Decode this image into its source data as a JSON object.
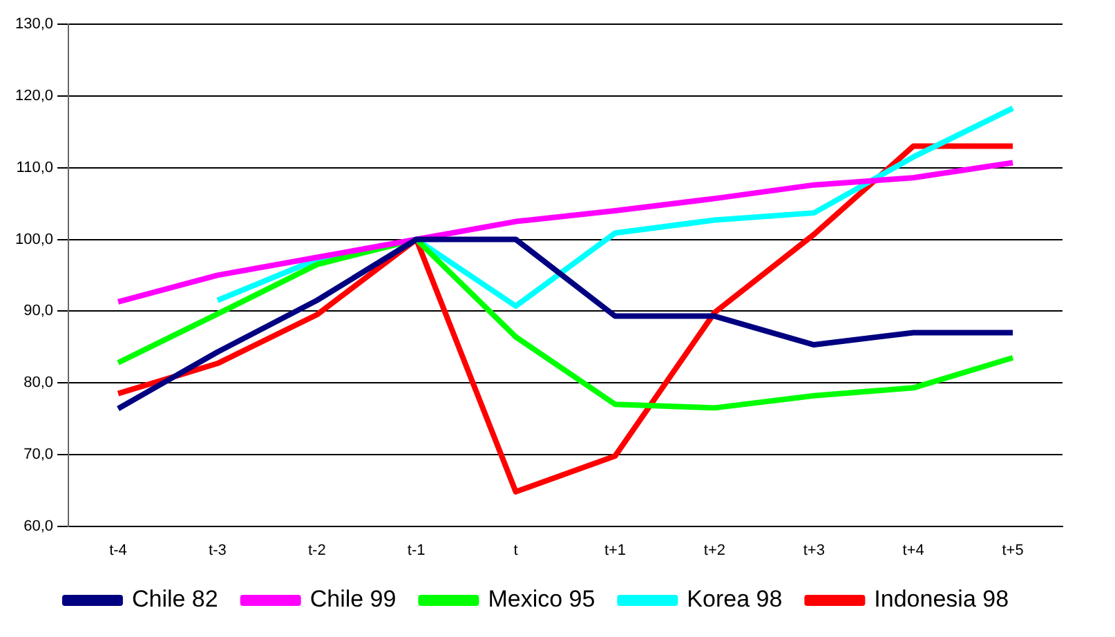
{
  "chart_data": {
    "type": "line",
    "categories": [
      "t-4",
      "t-3",
      "t-2",
      "t-1",
      "t",
      "t+1",
      "t+2",
      "t+3",
      "t+4",
      "t+5"
    ],
    "series": [
      {
        "name": "Chile 82",
        "color": "#000080",
        "values": [
          76.4,
          84.3,
          91.5,
          100,
          100,
          89.3,
          89.3,
          85.3,
          87,
          87
        ]
      },
      {
        "name": "Chile 99",
        "color": "#ff00ff",
        "values": [
          91.3,
          95,
          97.5,
          100,
          102.5,
          104,
          105.7,
          107.6,
          108.6,
          110.7
        ]
      },
      {
        "name": "Mexico 95",
        "color": "#00ff00",
        "values": [
          82.8,
          89.6,
          96.5,
          100,
          86.4,
          77,
          76.5,
          78.2,
          79.3,
          83.5
        ]
      },
      {
        "name": "Korea 98",
        "color": "#00ffff",
        "values": [
          null,
          91.5,
          97.2,
          100,
          90.7,
          100.9,
          102.7,
          103.7,
          111.5,
          118.3
        ]
      },
      {
        "name": "Indonesia 98",
        "color": "#ff0000",
        "values": [
          78.5,
          82.7,
          89.5,
          100,
          64.8,
          69.8,
          89.8,
          100.7,
          113,
          113
        ]
      }
    ],
    "ylim": [
      60,
      130
    ],
    "yticks": [
      {
        "value": 60,
        "label": "60,0"
      },
      {
        "value": 70,
        "label": "70,0"
      },
      {
        "value": 80,
        "label": "80,0"
      },
      {
        "value": 90,
        "label": "90,0"
      },
      {
        "value": 100,
        "label": "100,0"
      },
      {
        "value": 110,
        "label": "110,0"
      },
      {
        "value": 120,
        "label": "120,0"
      },
      {
        "value": 130,
        "label": "130,0"
      }
    ],
    "grid": "y",
    "legend": "bottom",
    "marker": "none",
    "line_style": "solid"
  }
}
